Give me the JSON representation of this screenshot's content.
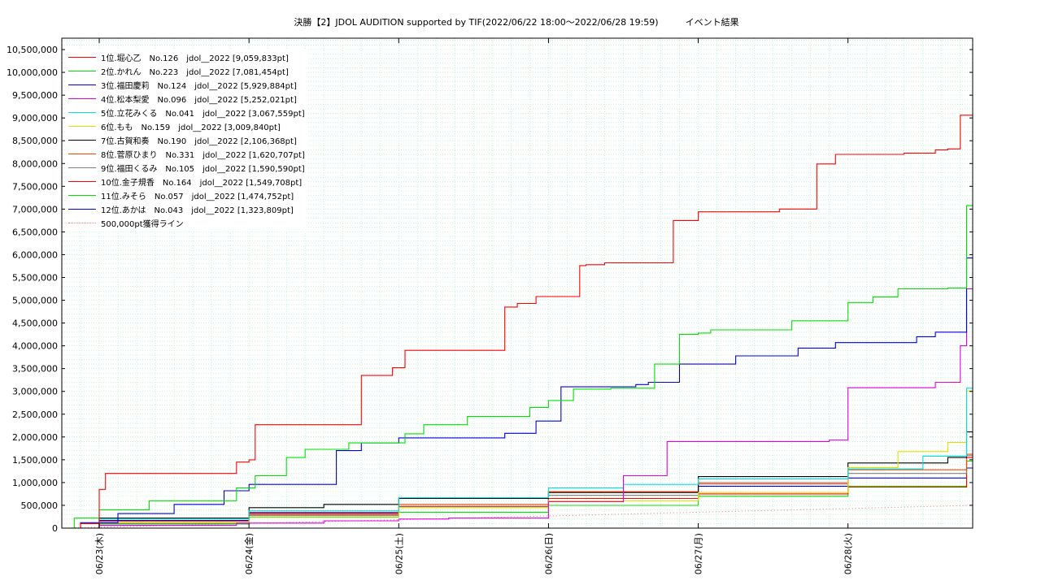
{
  "chart_data": {
    "type": "line",
    "title": "決勝【2】JDOL AUDITION supported by TIF(2022/06/22 18:00～2022/06/28 19:59)　　　イベント結果",
    "xlabel": "",
    "ylabel": "",
    "xlim": [
      "2022-06-22 18:00",
      "2022-06-28 19:59"
    ],
    "ylim": [
      0,
      10750000
    ],
    "y_ticks": [
      "0",
      "500,000",
      "1,000,000",
      "1,500,000",
      "2,000,000",
      "2,500,000",
      "3,000,000",
      "3,500,000",
      "4,000,000",
      "4,500,000",
      "5,000,000",
      "5,500,000",
      "6,000,000",
      "6,500,000",
      "7,000,000",
      "7,500,000",
      "8,000,000",
      "8,500,000",
      "9,000,000",
      "9,500,000",
      "10,000,000",
      "10,500,000"
    ],
    "x_ticks": [
      {
        "label": "06/23(木)",
        "t": "2022-06-23 00:00"
      },
      {
        "label": "06/24(金)",
        "t": "2022-06-24 00:00"
      },
      {
        "label": "06/25(土)",
        "t": "2022-06-25 00:00"
      },
      {
        "label": "06/26(日)",
        "t": "2022-06-26 00:00"
      },
      {
        "label": "06/27(月)",
        "t": "2022-06-27 00:00"
      },
      {
        "label": "06/28(火)",
        "t": "2022-06-28 00:00"
      }
    ],
    "grid": true,
    "legend_position": "top-left",
    "series": [
      {
        "name": "1位.堀心乙　No.126　jdol__2022 [9,059,833pt]",
        "color": "#ff0000",
        "style": "step",
        "x": [
          "2022-06-22 18:00",
          "2022-06-22 21:00",
          "2022-06-23 00:00",
          "2022-06-23 01:00",
          "2022-06-23 22:00",
          "2022-06-24 00:00",
          "2022-06-24 01:00",
          "2022-06-24 18:00",
          "2022-06-24 23:00",
          "2022-06-25 01:00",
          "2022-06-25 17:00",
          "2022-06-25 19:00",
          "2022-06-25 22:00",
          "2022-06-26 05:00",
          "2022-06-26 06:00",
          "2022-06-26 09:00",
          "2022-06-26 20:00",
          "2022-06-27 00:00",
          "2022-06-27 13:00",
          "2022-06-27 19:00",
          "2022-06-27 22:00",
          "2022-06-28 09:00",
          "2022-06-28 14:00",
          "2022-06-28 16:00",
          "2022-06-28 18:00",
          "2022-06-28 19:59"
        ],
        "y": [
          0,
          100000,
          850000,
          1200000,
          1450000,
          1500000,
          2270000,
          3350000,
          3520000,
          3900000,
          4850000,
          4930000,
          5080000,
          5760000,
          5780000,
          5820000,
          6750000,
          6940000,
          7000000,
          7990000,
          8200000,
          8230000,
          8300000,
          8320000,
          9060000,
          9059833
        ]
      },
      {
        "name": "2位.かれん　No.223　jdol__2022 [7,081,454pt]",
        "color": "#00e000",
        "style": "step",
        "x": [
          "2022-06-22 18:00",
          "2022-06-22 20:00",
          "2022-06-23 00:00",
          "2022-06-23 08:00",
          "2022-06-23 22:00",
          "2022-06-24 01:00",
          "2022-06-24 06:00",
          "2022-06-24 09:00",
          "2022-06-24 16:00",
          "2022-06-25 01:00",
          "2022-06-25 04:00",
          "2022-06-25 11:00",
          "2022-06-25 21:00",
          "2022-06-26 00:00",
          "2022-06-26 04:00",
          "2022-06-26 10:00",
          "2022-06-26 17:00",
          "2022-06-26 21:00",
          "2022-06-27 00:00",
          "2022-06-27 02:00",
          "2022-06-27 15:00",
          "2022-06-28 00:00",
          "2022-06-28 04:00",
          "2022-06-28 08:00",
          "2022-06-28 16:00",
          "2022-06-28 19:00",
          "2022-06-28 19:59"
        ],
        "y": [
          0,
          220000,
          400000,
          600000,
          880000,
          1150000,
          1550000,
          1730000,
          1870000,
          2070000,
          2270000,
          2450000,
          2650000,
          2800000,
          3050000,
          3070000,
          3600000,
          4250000,
          4280000,
          4350000,
          4550000,
          4950000,
          5070000,
          5250000,
          5270000,
          7080000,
          7081454
        ]
      },
      {
        "name": "3位.福田慶莉　No.124　jdol__2022 [5,929,884pt]",
        "color": "#0000e0",
        "style": "step",
        "x": [
          "2022-06-22 18:00",
          "2022-06-22 21:00",
          "2022-06-23 03:00",
          "2022-06-23 12:00",
          "2022-06-23 20:00",
          "2022-06-24 00:00",
          "2022-06-24 14:00",
          "2022-06-24 18:00",
          "2022-06-25 00:00",
          "2022-06-25 17:00",
          "2022-06-25 22:00",
          "2022-06-26 02:00",
          "2022-06-26 14:00",
          "2022-06-26 16:00",
          "2022-06-26 21:00",
          "2022-06-27 06:00",
          "2022-06-27 16:00",
          "2022-06-27 22:00",
          "2022-06-28 11:00",
          "2022-06-28 14:00",
          "2022-06-28 19:00",
          "2022-06-28 19:59"
        ],
        "y": [
          0,
          120000,
          320000,
          520000,
          820000,
          960000,
          1700000,
          1870000,
          1980000,
          2080000,
          2350000,
          3100000,
          3150000,
          3200000,
          3600000,
          3780000,
          3950000,
          4070000,
          4200000,
          4300000,
          5930000,
          5929884
        ]
      },
      {
        "name": "4位.松本梨愛　No.096　jdol__2022 [5,252,021pt]",
        "color": "#e000e0",
        "style": "step",
        "x": [
          "2022-06-22 18:00",
          "2022-06-23 00:00",
          "2022-06-23 22:00",
          "2022-06-24 12:00",
          "2022-06-25 00:00",
          "2022-06-25 08:00",
          "2022-06-26 00:00",
          "2022-06-26 12:00",
          "2022-06-26 19:00",
          "2022-06-27 21:00",
          "2022-06-28 00:00",
          "2022-06-28 14:00",
          "2022-06-28 18:00",
          "2022-06-28 19:00",
          "2022-06-28 19:59"
        ],
        "y": [
          0,
          60000,
          110000,
          160000,
          200000,
          220000,
          580000,
          1150000,
          1900000,
          1930000,
          3080000,
          3200000,
          4000000,
          5250000,
          5252021
        ]
      },
      {
        "name": "5位.立花みくる　No.041　jdol__2022 [3,067,559pt]",
        "color": "#00e0e0",
        "style": "step",
        "x": [
          "2022-06-22 18:00",
          "2022-06-23 00:00",
          "2022-06-24 00:00",
          "2022-06-25 00:00",
          "2022-06-26 00:00",
          "2022-06-26 12:00",
          "2022-06-27 00:00",
          "2022-06-28 00:00",
          "2022-06-28 12:00",
          "2022-06-28 19:00",
          "2022-06-28 19:59"
        ],
        "y": [
          0,
          200000,
          380000,
          670000,
          880000,
          960000,
          1080000,
          1300000,
          1580000,
          3070000,
          3067559
        ]
      },
      {
        "name": "6位.もも　No.159　jdol__2022 [3,009,840pt]",
        "color": "#e0e000",
        "style": "step",
        "x": [
          "2022-06-22 18:00",
          "2022-06-23 00:00",
          "2022-06-24 00:00",
          "2022-06-25 00:00",
          "2022-06-26 00:00",
          "2022-06-27 00:00",
          "2022-06-28 00:00",
          "2022-06-28 08:00",
          "2022-06-28 16:00",
          "2022-06-28 19:00",
          "2022-06-28 19:59"
        ],
        "y": [
          0,
          120000,
          250000,
          450000,
          600000,
          780000,
          1330000,
          1680000,
          1880000,
          3010000,
          3009840
        ]
      },
      {
        "name": "7位.古賀和奏　No.190　jdol__2022 [2,106,368pt]",
        "color": "#000000",
        "style": "step",
        "x": [
          "2022-06-22 18:00",
          "2022-06-23 00:00",
          "2022-06-24 00:00",
          "2022-06-24 12:00",
          "2022-06-25 00:00",
          "2022-06-26 00:00",
          "2022-06-27 00:00",
          "2022-06-28 00:00",
          "2022-06-28 16:00",
          "2022-06-28 19:00",
          "2022-06-28 19:59"
        ],
        "y": [
          0,
          220000,
          450000,
          520000,
          650000,
          780000,
          1130000,
          1430000,
          1550000,
          2110000,
          2106368
        ]
      },
      {
        "name": "8位.菅原ひまり　No.331　jdol__2022 [1,620,707pt]",
        "color": "#ff4500",
        "style": "step",
        "x": [
          "2022-06-22 18:00",
          "2022-06-23 00:00",
          "2022-06-24 00:00",
          "2022-06-25 00:00",
          "2022-06-26 00:00",
          "2022-06-27 00:00",
          "2022-06-28 00:00",
          "2022-06-28 19:00",
          "2022-06-28 19:59"
        ],
        "y": [
          0,
          150000,
          350000,
          520000,
          800000,
          970000,
          1280000,
          1620000,
          1620707
        ]
      },
      {
        "name": "9位.福田くるみ　No.105　jdol__2022 [1,590,590pt]",
        "color": "#808080",
        "style": "step",
        "x": [
          "2022-06-22 18:00",
          "2022-06-23 00:00",
          "2022-06-24 00:00",
          "2022-06-25 00:00",
          "2022-06-26 00:00",
          "2022-06-27 00:00",
          "2022-06-28 00:00",
          "2022-06-28 19:00",
          "2022-06-28 19:59"
        ],
        "y": [
          0,
          100000,
          280000,
          480000,
          720000,
          1000000,
          1200000,
          1590000,
          1590590
        ]
      },
      {
        "name": "10位.金子規香　No.164　jdol__2022 [1,549,708pt]",
        "color": "#ff0000",
        "style": "step",
        "x": [
          "2022-06-22 18:00",
          "2022-06-23 00:00",
          "2022-06-24 00:00",
          "2022-06-25 00:00",
          "2022-06-26 00:00",
          "2022-06-27 00:00",
          "2022-06-28 00:00",
          "2022-06-28 19:00",
          "2022-06-28 19:59"
        ],
        "y": [
          0,
          110000,
          300000,
          470000,
          650000,
          750000,
          900000,
          1550000,
          1549708
        ]
      },
      {
        "name": "11位.みそら　No.057　jdol__2022 [1,474,752pt]",
        "color": "#00e000",
        "style": "step",
        "x": [
          "2022-06-22 18:00",
          "2022-06-23 00:00",
          "2022-06-24 00:00",
          "2022-06-25 00:00",
          "2022-06-26 00:00",
          "2022-06-27 00:00",
          "2022-06-28 00:00",
          "2022-06-28 19:00",
          "2022-06-28 19:59"
        ],
        "y": [
          0,
          90000,
          240000,
          350000,
          500000,
          700000,
          920000,
          1470000,
          1474752
        ]
      },
      {
        "name": "12位.あかは　No.043　jdol__2022 [1,323,809pt]",
        "color": "#0000e0",
        "style": "step",
        "x": [
          "2022-06-22 18:00",
          "2022-06-23 00:00",
          "2022-06-24 00:00",
          "2022-06-25 00:00",
          "2022-06-26 00:00",
          "2022-06-27 00:00",
          "2022-06-28 00:00",
          "2022-06-28 19:00",
          "2022-06-28 19:59"
        ],
        "y": [
          0,
          170000,
          330000,
          480000,
          650000,
          920000,
          1100000,
          1320000,
          1323809
        ]
      },
      {
        "name": "500,000pt獲得ライン",
        "color": "#e08080",
        "style": "dotted",
        "x": [
          "2022-06-22 18:00",
          "2022-06-28 19:59"
        ],
        "y": [
          0,
          500000
        ]
      }
    ]
  }
}
